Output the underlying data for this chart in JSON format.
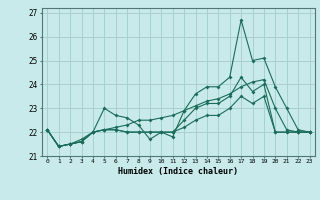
{
  "title": "",
  "xlabel": "Humidex (Indice chaleur)",
  "ylabel": "",
  "background_color": "#c8eaea",
  "grid_color": "#a8d0d0",
  "line_color": "#1a6b5a",
  "x": [
    0,
    1,
    2,
    3,
    4,
    5,
    6,
    7,
    8,
    9,
    10,
    11,
    12,
    13,
    14,
    15,
    16,
    17,
    18,
    19,
    20,
    21,
    22,
    23
  ],
  "series1": [
    22.1,
    21.4,
    21.5,
    21.6,
    22.0,
    23.0,
    22.7,
    22.6,
    22.3,
    21.7,
    22.0,
    21.8,
    22.9,
    23.6,
    23.9,
    23.9,
    24.3,
    26.7,
    25.0,
    25.1,
    23.9,
    23.0,
    22.1,
    22.0
  ],
  "series2": [
    22.1,
    21.4,
    21.5,
    21.6,
    22.0,
    22.1,
    22.1,
    22.0,
    22.0,
    22.0,
    22.0,
    22.0,
    22.5,
    23.0,
    23.2,
    23.2,
    23.5,
    24.3,
    23.7,
    24.0,
    22.0,
    22.0,
    22.0,
    22.0
  ],
  "series3": [
    22.1,
    21.4,
    21.5,
    21.6,
    22.0,
    22.1,
    22.1,
    22.0,
    22.0,
    22.0,
    22.0,
    22.0,
    22.2,
    22.5,
    22.7,
    22.7,
    23.0,
    23.5,
    23.2,
    23.5,
    22.0,
    22.0,
    22.0,
    22.0
  ],
  "series4": [
    22.1,
    21.4,
    21.5,
    21.7,
    22.0,
    22.1,
    22.2,
    22.3,
    22.5,
    22.5,
    22.6,
    22.7,
    22.9,
    23.1,
    23.3,
    23.4,
    23.6,
    23.9,
    24.1,
    24.2,
    23.0,
    22.1,
    22.0,
    22.0
  ],
  "ylim": [
    21.0,
    27.2
  ],
  "yticks": [
    21,
    22,
    23,
    24,
    25,
    26,
    27
  ],
  "xticks": [
    0,
    1,
    2,
    3,
    4,
    5,
    6,
    7,
    8,
    9,
    10,
    11,
    12,
    13,
    14,
    15,
    16,
    17,
    18,
    19,
    20,
    21,
    22,
    23
  ],
  "xlim": [
    -0.5,
    23.5
  ]
}
